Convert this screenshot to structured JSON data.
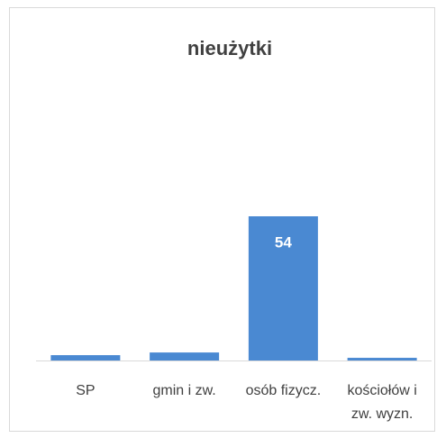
{
  "chart_data": {
    "type": "bar",
    "title": "nieużytki",
    "categories": [
      "SP",
      "gmin i zw.",
      "osób fizycz.",
      "kościołów i zw. wyzn."
    ],
    "values": [
      2,
      3,
      54,
      1
    ],
    "color": "#4a89d2"
  }
}
